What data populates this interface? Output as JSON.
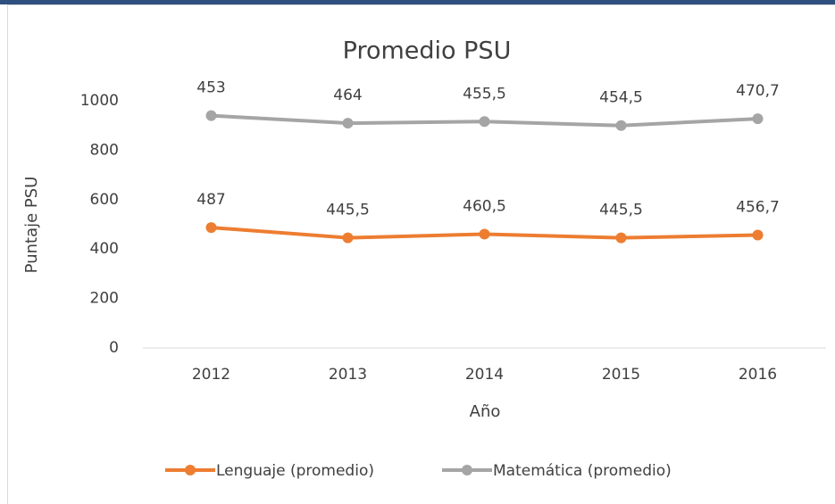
{
  "chart_data": {
    "type": "line",
    "stacked": true,
    "title": "Promedio PSU",
    "x_label": "Año",
    "y_label": "Puntaje PSU",
    "categories": [
      "2012",
      "2013",
      "2014",
      "2015",
      "2016"
    ],
    "series": [
      {
        "name": "Lenguaje (promedio)",
        "color": "#ed7d31",
        "values": [
          487,
          445.5,
          460.5,
          445.5,
          456.7
        ],
        "value_labels": [
          "487",
          "445,5",
          "460,5",
          "445,5",
          "456,7"
        ]
      },
      {
        "name": "Matemática (promedio)",
        "color": "#a5a5a5",
        "values": [
          453,
          464,
          455.5,
          454.5,
          470.7
        ],
        "value_labels": [
          "453",
          "464",
          "455,5",
          "454,5",
          "470,7"
        ]
      }
    ],
    "ylim": [
      0,
      1000
    ],
    "yticks": [
      0,
      200,
      400,
      600,
      800,
      1000
    ],
    "grid": false
  }
}
